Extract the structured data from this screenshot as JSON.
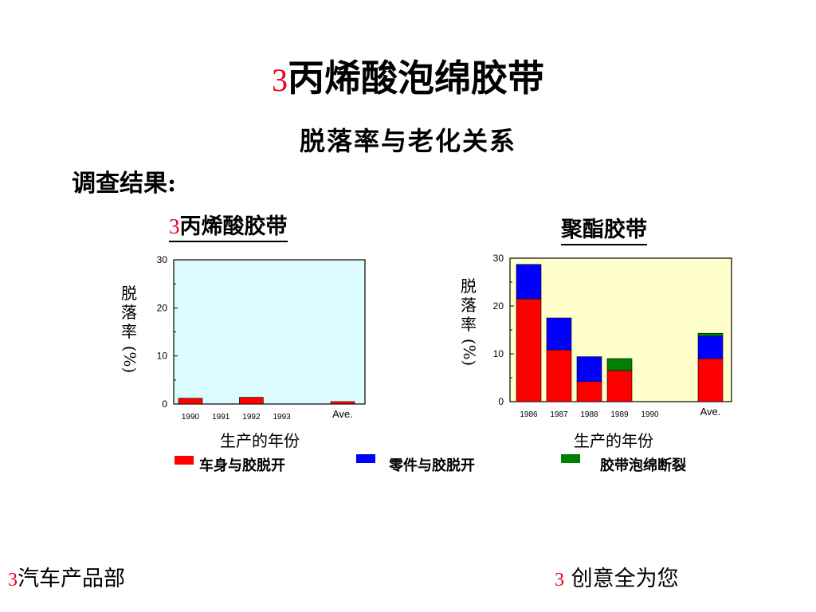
{
  "header": {
    "title_prefix": "3",
    "title": "丙烯酸泡绵胶带",
    "subtitle": "脱落率与老化关系",
    "survey_label": "调查结果:"
  },
  "chart_data": [
    {
      "type": "bar",
      "title_prefix": "3",
      "title": "丙烯酸胶带",
      "categories": [
        "1990",
        "1991",
        "1992",
        "1993",
        "",
        "Ave."
      ],
      "series": [
        {
          "name": "车身与胶脱开",
          "values": [
            1.2,
            0,
            1.4,
            0,
            0,
            0.5
          ]
        },
        {
          "name": "零件与胶脱开",
          "values": [
            0,
            0,
            0,
            0,
            0,
            0
          ]
        },
        {
          "name": "胶带泡绵断裂",
          "values": [
            0,
            0,
            0,
            0,
            0,
            0
          ]
        }
      ],
      "ylabel_lines": [
        "脱",
        "落",
        "率",
        "(%)"
      ],
      "xlabel": "生产的年份",
      "ylim": [
        0,
        30
      ],
      "yticks": [
        "0",
        "10",
        "20",
        "30"
      ],
      "background": "#dcfbff",
      "stacked": true,
      "grid": false
    },
    {
      "type": "bar",
      "title": "聚酯胶带",
      "categories": [
        "1986",
        "1987",
        "1988",
        "1989",
        "1990",
        "",
        "Ave."
      ],
      "series": [
        {
          "name": "车身与胶脱开",
          "values": [
            21.5,
            10.8,
            4.2,
            6.5,
            0,
            0,
            9
          ]
        },
        {
          "name": "零件与胶脱开",
          "values": [
            7.2,
            6.7,
            5.2,
            0,
            0,
            0,
            4.7
          ]
        },
        {
          "name": "胶带泡绵断裂",
          "values": [
            0,
            0,
            0,
            2.5,
            0,
            0,
            0.6
          ]
        }
      ],
      "ylabel_lines": [
        "脱",
        "落",
        "率",
        "(%)"
      ],
      "xlabel": "生产的年份",
      "ylim": [
        0,
        30
      ],
      "yticks": [
        "0",
        "10",
        "20",
        "30"
      ],
      "background": "#ffffcc",
      "stacked": true,
      "grid": false
    }
  ],
  "legend": [
    {
      "label": "车身与胶脱开",
      "color": "#ff0000"
    },
    {
      "label": "零件与胶脱开",
      "color": "#0000ff"
    },
    {
      "label": "胶带泡绵断裂",
      "color": "#008000"
    }
  ],
  "footer": {
    "left_prefix": "3",
    "left": "汽车产品部",
    "right_prefix": "3",
    "right": "创意全为您"
  }
}
